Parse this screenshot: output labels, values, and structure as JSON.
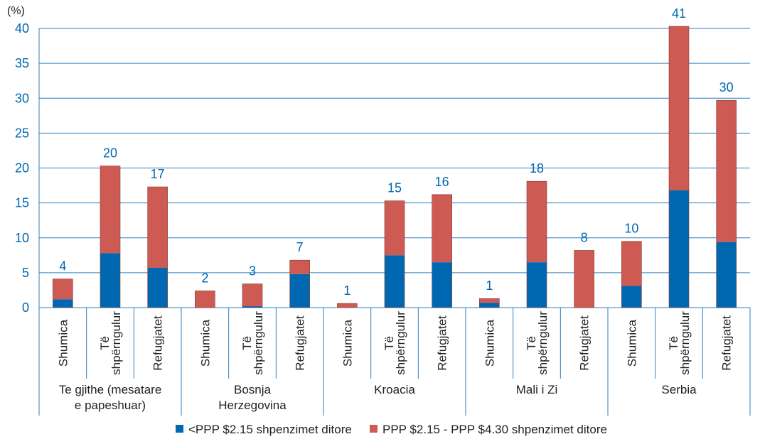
{
  "chart_data": {
    "type": "bar",
    "stacked": true,
    "unit_label": "(%)",
    "ylim": [
      0,
      40
    ],
    "yticks": [
      0,
      5,
      10,
      15,
      20,
      25,
      30,
      35,
      40
    ],
    "grid": true,
    "legend_position": "bottom",
    "groups": [
      {
        "name": "Te gjithe (mesatare e papeshuar)",
        "name_lines": [
          "Te gjithe (mesatare",
          "e papeshuar)"
        ]
      },
      {
        "name": "Bosnja Herzegovina",
        "name_lines": [
          "Bosnja",
          "Herzegovina"
        ]
      },
      {
        "name": "Kroacia",
        "name_lines": [
          "Kroacia"
        ]
      },
      {
        "name": "Mali i Zi",
        "name_lines": [
          "Mali i Zi"
        ]
      },
      {
        "name": "Serbia",
        "name_lines": [
          "Serbia"
        ]
      }
    ],
    "categories": [
      "Shumica",
      "Të shpërngulur",
      "Refugjatet",
      "Shumica",
      "Të shpërngulur",
      "Refugjatet",
      "Shumica",
      "Të shpërngulur",
      "Refugjatet",
      "Shumica",
      "Të shpërngulur",
      "Refugjatet",
      "Shumica",
      "Të shpërngulur",
      "Refugjatet"
    ],
    "category_labels": {
      "Shumica": [
        "Shumica"
      ],
      "Të shpërngulur": [
        "Të",
        "shpërngulur"
      ],
      "Refugjatet": [
        "Refugjatet"
      ]
    },
    "series": [
      {
        "name": "<PPP $2.15 shpenzimet ditore",
        "color": "#0067b1",
        "values": [
          1.2,
          7.8,
          5.7,
          0,
          0.2,
          4.8,
          0,
          7.5,
          6.5,
          0.7,
          6.5,
          0,
          3.1,
          16.8,
          9.4
        ]
      },
      {
        "name": "PPP $2.15 - PPP $4.30 shpenzimet ditore",
        "color": "#cd5b54",
        "values": [
          2.9,
          12.5,
          11.6,
          2.4,
          3.2,
          2.0,
          0.6,
          7.8,
          9.7,
          0.6,
          11.6,
          8.2,
          6.4,
          23.5,
          20.3
        ]
      }
    ],
    "total_labels": [
      "4",
      "20",
      "17",
      "2",
      "3",
      "7",
      "1",
      "15",
      "16",
      "1",
      "18",
      "8",
      "10",
      "41",
      "30"
    ]
  }
}
